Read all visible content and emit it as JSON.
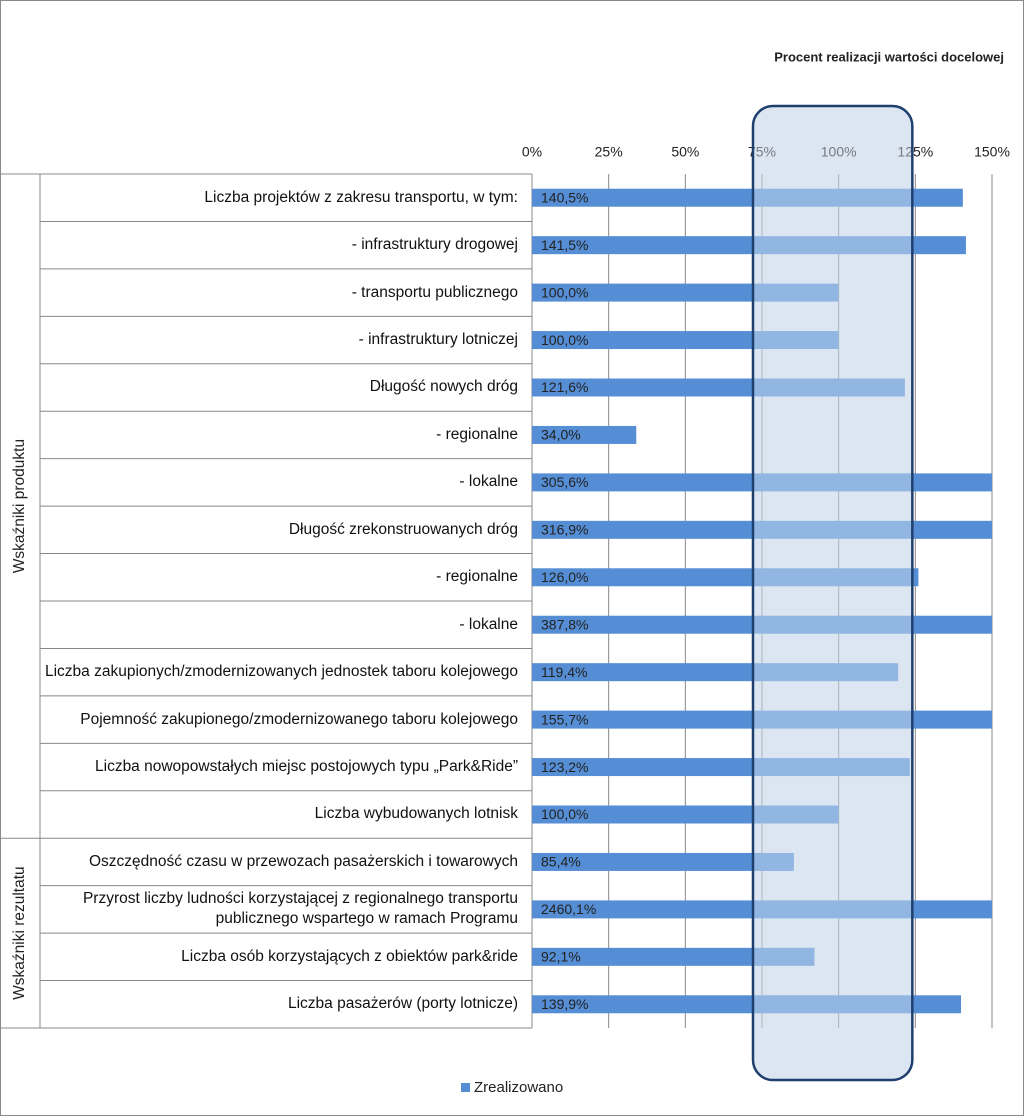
{
  "chart_data": {
    "type": "bar",
    "orientation": "horizontal",
    "annotation": "Procent realizacji wartości docelowej",
    "groups": [
      {
        "name": "Wskaźniki produktu",
        "categories": [
          "Liczba projektów z zakresu transportu, w tym:",
          "- infrastruktury drogowej",
          "- transportu publicznego",
          "- infrastruktury lotniczej",
          "Długość nowych dróg",
          "- regionalne",
          "- lokalne",
          "Długość zrekonstruowanych dróg",
          "- regionalne",
          "- lokalne",
          "Liczba zakupionych/zmodernizowanych jednostek taboru kolejowego",
          "Pojemność zakupionego/zmodernizowanego taboru kolejowego",
          "Liczba nowopowstałych miejsc postojowych typu „Park&Ride”",
          "Liczba wybudowanych lotnisk"
        ]
      },
      {
        "name": "Wskaźniki rezultatu",
        "categories": [
          "Oszczędność czasu w przewozach pasażerskich i towarowych",
          "Przyrost liczby ludności korzystającej z regionalnego transportu publicznego wspartego w ramach Programu",
          "Liczba osób korzystających z obiektów park&ride",
          "Liczba pasażerów (porty lotnicze)"
        ]
      }
    ],
    "series": [
      {
        "name": "Zrealizowano",
        "color": "#558ed5",
        "values": [
          140.5,
          141.5,
          100.0,
          100.0,
          121.6,
          34.0,
          305.6,
          316.9,
          126.0,
          387.8,
          119.4,
          155.7,
          123.2,
          100.0,
          85.4,
          2460.1,
          92.1,
          139.9
        ],
        "value_labels": [
          "140,5%",
          "141,5%",
          "100,0%",
          "100,0%",
          "121,6%",
          "34,0%",
          "305,6%",
          "316,9%",
          "126,0%",
          "387,8%",
          "119,4%",
          "155,7%",
          "123,2%",
          "100,0%",
          "85,4%",
          "2460,1%",
          "92,1%",
          "139,9%"
        ]
      }
    ],
    "target_band": [
      75,
      125
    ],
    "xlim": [
      0,
      150
    ],
    "xticks": [
      {
        "value": 0,
        "label": "0%"
      },
      {
        "value": 25,
        "label": "25%"
      },
      {
        "value": 50,
        "label": "50%"
      },
      {
        "value": 75,
        "label": "75%"
      },
      {
        "value": 100,
        "label": "100%"
      },
      {
        "value": 125,
        "label": "125%"
      },
      {
        "value": 150,
        "label": "150%"
      }
    ],
    "grid": true,
    "legend": "bottom"
  }
}
